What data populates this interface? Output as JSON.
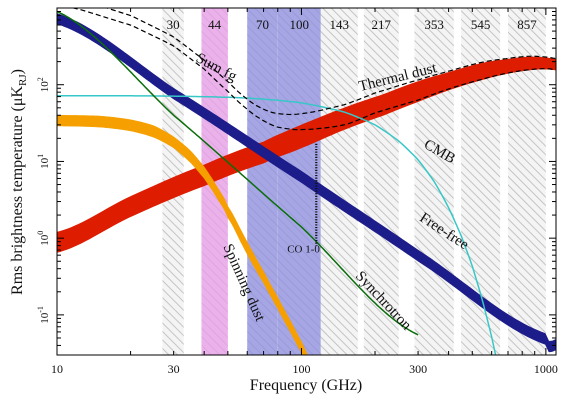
{
  "chart_data": {
    "type": "line",
    "xlabel": "Frequency (GHz)",
    "ylabel_main": "Rms brightness temperature (μK",
    "ylabel_sub": "RJ",
    "ylabel_close": ")",
    "xscale": "log",
    "yscale": "log",
    "xlim": [
      10,
      1100
    ],
    "ylim": [
      0.03,
      1000
    ],
    "xticks": [
      {
        "value": 10,
        "label": "10"
      },
      {
        "value": 30,
        "label": "30"
      },
      {
        "value": 100,
        "label": "100"
      },
      {
        "value": 300,
        "label": "300"
      },
      {
        "value": 1000,
        "label": "1000"
      }
    ],
    "yticks": [
      {
        "value": 0.1,
        "base": "10",
        "exp": "-1"
      },
      {
        "value": 1,
        "base": "10",
        "exp": "0"
      },
      {
        "value": 10,
        "base": "10",
        "exp": "1"
      },
      {
        "value": 100,
        "base": "10",
        "exp": "2"
      }
    ],
    "bands": [
      {
        "label": "30",
        "lo": 27,
        "hi": 33,
        "kind": "hatch"
      },
      {
        "label": "44",
        "lo": 39,
        "hi": 50,
        "kind": "hatch",
        "highlight": "#e89be8"
      },
      {
        "label": "70",
        "lo": 60,
        "hi": 80,
        "kind": "hatch",
        "highlight": "#8c8ce0"
      },
      {
        "label": "100",
        "lo": 80,
        "hi": 120,
        "kind": "hatch",
        "highlight": "#8c8ce0"
      },
      {
        "label": "143",
        "lo": 120,
        "hi": 170,
        "kind": "hatch"
      },
      {
        "label": "217",
        "lo": 180,
        "hi": 250,
        "kind": "hatch"
      },
      {
        "label": "353",
        "lo": 290,
        "hi": 420,
        "kind": "hatch"
      },
      {
        "label": "545",
        "lo": 450,
        "hi": 650,
        "kind": "hatch"
      },
      {
        "label": "857",
        "lo": 700,
        "hi": 1000,
        "kind": "hatch"
      }
    ],
    "series": [
      {
        "name": "Thermal dust",
        "color": "#dd1c00",
        "kind": "band",
        "x": [
          10,
          20,
          40,
          70,
          100,
          150,
          217,
          300,
          400,
          545,
          700,
          857,
          1000,
          1100
        ],
        "upper": [
          1.2,
          3.5,
          9,
          18,
          30,
          50,
          75,
          110,
          145,
          190,
          215,
          230,
          225,
          215
        ],
        "lower": [
          0.65,
          1.9,
          4.8,
          9.5,
          15,
          26,
          40,
          60,
          85,
          115,
          140,
          155,
          160,
          155
        ]
      },
      {
        "name": "Spinning dust",
        "color": "#f5a000",
        "kind": "band",
        "x": [
          10,
          15,
          20,
          25,
          30,
          35,
          40,
          45,
          50,
          60,
          70,
          80,
          90,
          100,
          110
        ],
        "upper": [
          40,
          39,
          35,
          29,
          21,
          14,
          8.5,
          4.8,
          2.6,
          0.9,
          0.37,
          0.17,
          0.085,
          0.045,
          0.025
        ],
        "lower": [
          29,
          28,
          25,
          20.5,
          15,
          9.8,
          6,
          3.4,
          1.85,
          0.62,
          0.26,
          0.12,
          0.06,
          0.032,
          0.018
        ]
      },
      {
        "name": "Free-free",
        "color": "#1c1c8a",
        "kind": "band",
        "x": [
          10,
          30,
          100,
          300,
          1000,
          1100
        ],
        "upper": [
          850,
          90,
          7.5,
          0.7,
          0.057,
          0.048
        ],
        "lower": [
          620,
          65,
          5.3,
          0.5,
          0.041,
          0.035
        ]
      },
      {
        "name": "CMB",
        "color": "#38c7c7",
        "kind": "line",
        "x": [
          10,
          30,
          60,
          100,
          150,
          200,
          250,
          300,
          350,
          400,
          450,
          500,
          550,
          600,
          650
        ],
        "values": [
          72,
          71,
          67,
          58,
          44,
          30,
          18.5,
          10.5,
          5.4,
          2.5,
          1.08,
          0.43,
          0.155,
          0.052,
          0.018
        ]
      },
      {
        "name": "Synchrotron",
        "color": "#0a6e0a",
        "kind": "line",
        "x": [
          10,
          30,
          100,
          300
        ],
        "values": [
          900,
          40,
          1.4,
          0.055
        ]
      },
      {
        "name": "Sum fg",
        "color": "#000000",
        "kind": "dashed-pair",
        "x": [
          10,
          20,
          30,
          40,
          50,
          60,
          70,
          80,
          100,
          150,
          200,
          300,
          400,
          545,
          700,
          857,
          1000,
          1100
        ],
        "upper": [
          1500,
          800,
          420,
          210,
          110,
          65,
          48,
          42,
          42,
          55,
          78,
          115,
          150,
          195,
          220,
          235,
          230,
          220
        ],
        "lower": [
          1100,
          600,
          320,
          160,
          82,
          48,
          34,
          28,
          26,
          30,
          43,
          63,
          88,
          117,
          142,
          157,
          162,
          157
        ]
      }
    ],
    "annotations": [
      {
        "text": "Sum fg",
        "x": 44,
        "y": 150,
        "rotate": 28,
        "color": "#3a0050",
        "size": "big"
      },
      {
        "text": "Thermal dust",
        "x": 250,
        "y": 110,
        "rotate": -14,
        "color": "#cc1400",
        "size": "big"
      },
      {
        "text": "CMB",
        "x": 360,
        "y": 12,
        "rotate": 30,
        "color": "#1aa6a6",
        "size": "big"
      },
      {
        "text": "Free-free",
        "x": 375,
        "y": 1.1,
        "rotate": 33,
        "color": "#10106e",
        "size": "big"
      },
      {
        "text": "Synchrotron",
        "x": 210,
        "y": 0.14,
        "rotate": 47,
        "color": "#0a5a0a",
        "size": "big"
      },
      {
        "text": "Spinning dust",
        "x": 56,
        "y": 0.25,
        "rotate": 66,
        "color": "#e08a00",
        "size": "big"
      },
      {
        "text": "CO 1-0",
        "x": 102,
        "y": 0.65,
        "rotate": 0,
        "color": "#111111",
        "size": "small"
      }
    ],
    "co_line": {
      "x": 115,
      "y_top": 17,
      "y_bottom": 0.8
    }
  }
}
